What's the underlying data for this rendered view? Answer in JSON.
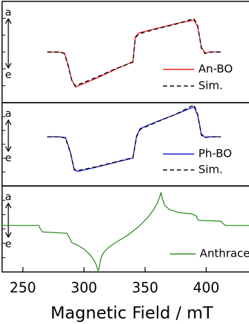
{
  "chart_data": [
    {
      "type": "line",
      "ylabel_top": "a",
      "ylabel_bottom": "e",
      "xlim": [
        233,
        435
      ],
      "ylim": [
        -1,
        1
      ],
      "series": [
        {
          "name": "An-BO",
          "color": "#e8161b",
          "dashed": false,
          "x": [
            270,
            280,
            284,
            287,
            290,
            293,
            296,
            310,
            325,
            340,
            342,
            345,
            360,
            375,
            390,
            393,
            396,
            399,
            403,
            412
          ],
          "values": [
            0.0,
            0.0,
            -0.02,
            -0.25,
            -0.55,
            -0.69,
            -0.66,
            -0.52,
            -0.35,
            -0.19,
            0.3,
            0.38,
            0.47,
            0.56,
            0.63,
            0.5,
            0.1,
            -0.02,
            0.0,
            0.0
          ]
        },
        {
          "name": "Sim.",
          "color": "#000000",
          "dashed": true,
          "x": [
            270,
            280,
            284,
            287,
            290,
            293,
            296,
            310,
            325,
            340,
            342,
            345,
            360,
            375,
            390,
            393,
            396,
            399,
            403,
            412
          ],
          "values": [
            0.0,
            0.0,
            -0.03,
            -0.27,
            -0.56,
            -0.67,
            -0.64,
            -0.5,
            -0.34,
            -0.2,
            0.28,
            0.36,
            0.46,
            0.55,
            0.66,
            0.52,
            0.08,
            -0.03,
            0.0,
            0.0
          ]
        }
      ]
    },
    {
      "type": "line",
      "ylabel_top": "a",
      "ylabel_bottom": "e",
      "xlim": [
        233,
        435
      ],
      "ylim": [
        -1,
        1
      ],
      "series": [
        {
          "name": "Ph-BO",
          "color": "#1414e0",
          "dashed": false,
          "x": [
            270,
            280,
            285,
            289,
            292,
            295,
            310,
            325,
            340,
            343,
            346,
            360,
            375,
            390,
            393,
            396,
            399,
            403,
            412
          ],
          "values": [
            0.18,
            0.18,
            0.16,
            -0.2,
            -0.62,
            -0.65,
            -0.55,
            -0.44,
            -0.33,
            0.2,
            0.38,
            0.55,
            0.72,
            0.9,
            0.7,
            0.25,
            0.17,
            0.18,
            0.18
          ]
        },
        {
          "name": "Sim.",
          "color": "#000000",
          "dashed": true,
          "x": [
            270,
            280,
            285,
            289,
            292,
            295,
            310,
            325,
            340,
            343,
            346,
            360,
            375,
            390,
            393,
            396,
            399,
            403,
            412
          ],
          "values": [
            0.18,
            0.18,
            0.15,
            -0.22,
            -0.6,
            -0.63,
            -0.54,
            -0.43,
            -0.32,
            0.18,
            0.36,
            0.54,
            0.72,
            0.95,
            0.72,
            0.22,
            0.16,
            0.18,
            0.18
          ]
        }
      ]
    },
    {
      "type": "line",
      "ylabel_top": "a",
      "ylabel_bottom": "e",
      "xlim": [
        233,
        435
      ],
      "ylim": [
        -1,
        1
      ],
      "xticks": [
        250,
        300,
        350,
        400
      ],
      "xlabel": "Magnetic Field / mT",
      "series": [
        {
          "name": "Anthracene",
          "color": "#2a8a1f",
          "dashed": false,
          "x": [
            233,
            263,
            264,
            266,
            286,
            288,
            290,
            295,
            300,
            305,
            308,
            310,
            311.5,
            312.5,
            313.5,
            315,
            318,
            325,
            335,
            345,
            352,
            357,
            360,
            362,
            363,
            364,
            366,
            370,
            378,
            388,
            392,
            393,
            394,
            412,
            414,
            416,
            435
          ],
          "values": [
            0.08,
            0.08,
            0.02,
            -0.07,
            -0.1,
            -0.2,
            -0.32,
            -0.38,
            -0.47,
            -0.6,
            -0.72,
            -0.83,
            -0.97,
            -0.9,
            -0.72,
            -0.6,
            -0.48,
            -0.33,
            -0.16,
            0.06,
            0.26,
            0.45,
            0.6,
            0.75,
            0.85,
            0.72,
            0.55,
            0.45,
            0.38,
            0.35,
            0.3,
            0.22,
            0.2,
            0.18,
            0.12,
            0.08,
            0.08
          ]
        }
      ]
    }
  ]
}
